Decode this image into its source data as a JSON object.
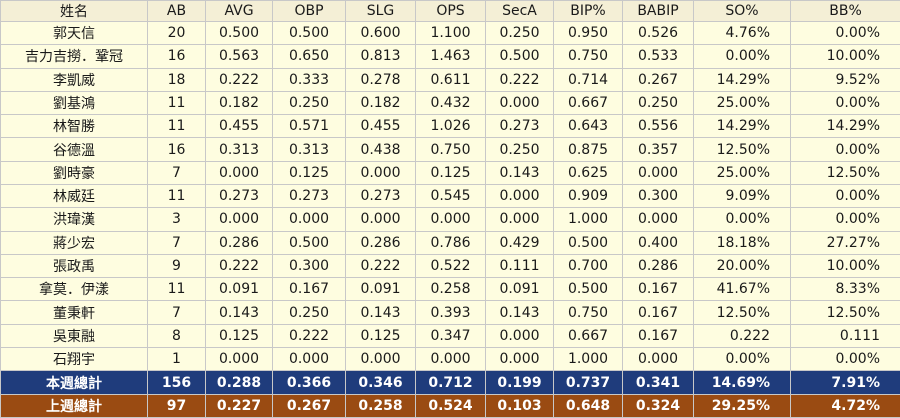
{
  "table": {
    "header": [
      "姓名",
      "AB",
      "AVG",
      "OBP",
      "SLG",
      "OPS",
      "SecA",
      "BIP%",
      "BABIP",
      "SO%",
      "BB%"
    ],
    "rows": [
      [
        "郭天信",
        "20",
        "0.500",
        "0.500",
        "0.600",
        "1.100",
        "0.250",
        "0.950",
        "0.526",
        "4.76%",
        "0.00%"
      ],
      [
        "吉力吉撈．鞏冠",
        "16",
        "0.563",
        "0.650",
        "0.813",
        "1.463",
        "0.500",
        "0.750",
        "0.533",
        "0.00%",
        "10.00%"
      ],
      [
        "李凱威",
        "18",
        "0.222",
        "0.333",
        "0.278",
        "0.611",
        "0.222",
        "0.714",
        "0.267",
        "14.29%",
        "9.52%"
      ],
      [
        "劉基鴻",
        "11",
        "0.182",
        "0.250",
        "0.182",
        "0.432",
        "0.000",
        "0.667",
        "0.250",
        "25.00%",
        "0.00%"
      ],
      [
        "林智勝",
        "11",
        "0.455",
        "0.571",
        "0.455",
        "1.026",
        "0.273",
        "0.643",
        "0.556",
        "14.29%",
        "14.29%"
      ],
      [
        "谷德溫",
        "16",
        "0.313",
        "0.313",
        "0.438",
        "0.750",
        "0.250",
        "0.875",
        "0.357",
        "12.50%",
        "0.00%"
      ],
      [
        "劉時豪",
        "7",
        "0.000",
        "0.125",
        "0.000",
        "0.125",
        "0.143",
        "0.625",
        "0.000",
        "25.00%",
        "12.50%"
      ],
      [
        "林威廷",
        "11",
        "0.273",
        "0.273",
        "0.273",
        "0.545",
        "0.000",
        "0.909",
        "0.300",
        "9.09%",
        "0.00%"
      ],
      [
        "洪瑋漢",
        "3",
        "0.000",
        "0.000",
        "0.000",
        "0.000",
        "0.000",
        "1.000",
        "0.000",
        "0.00%",
        "0.00%"
      ],
      [
        "蔣少宏",
        "7",
        "0.286",
        "0.500",
        "0.286",
        "0.786",
        "0.429",
        "0.500",
        "0.400",
        "18.18%",
        "27.27%"
      ],
      [
        "張政禹",
        "9",
        "0.222",
        "0.300",
        "0.222",
        "0.522",
        "0.111",
        "0.700",
        "0.286",
        "20.00%",
        "10.00%"
      ],
      [
        "拿莫．伊漾",
        "11",
        "0.091",
        "0.167",
        "0.091",
        "0.258",
        "0.091",
        "0.500",
        "0.167",
        "41.67%",
        "8.33%"
      ],
      [
        "董秉軒",
        "7",
        "0.143",
        "0.250",
        "0.143",
        "0.393",
        "0.143",
        "0.750",
        "0.167",
        "12.50%",
        "12.50%"
      ],
      [
        "吳東融",
        "8",
        "0.125",
        "0.222",
        "0.125",
        "0.347",
        "0.000",
        "0.667",
        "0.167",
        "0.222",
        "0.111"
      ],
      [
        "石翔宇",
        "1",
        "0.000",
        "0.000",
        "0.000",
        "0.000",
        "0.000",
        "1.000",
        "0.000",
        "0.00%",
        "0.00%"
      ]
    ],
    "totals": [
      [
        "本週總計",
        "156",
        "0.288",
        "0.366",
        "0.346",
        "0.712",
        "0.199",
        "0.737",
        "0.341",
        "14.69%",
        "7.91%"
      ],
      [
        "上週總計",
        "97",
        "0.227",
        "0.267",
        "0.258",
        "0.524",
        "0.103",
        "0.648",
        "0.324",
        "29.25%",
        "4.72%"
      ]
    ]
  }
}
